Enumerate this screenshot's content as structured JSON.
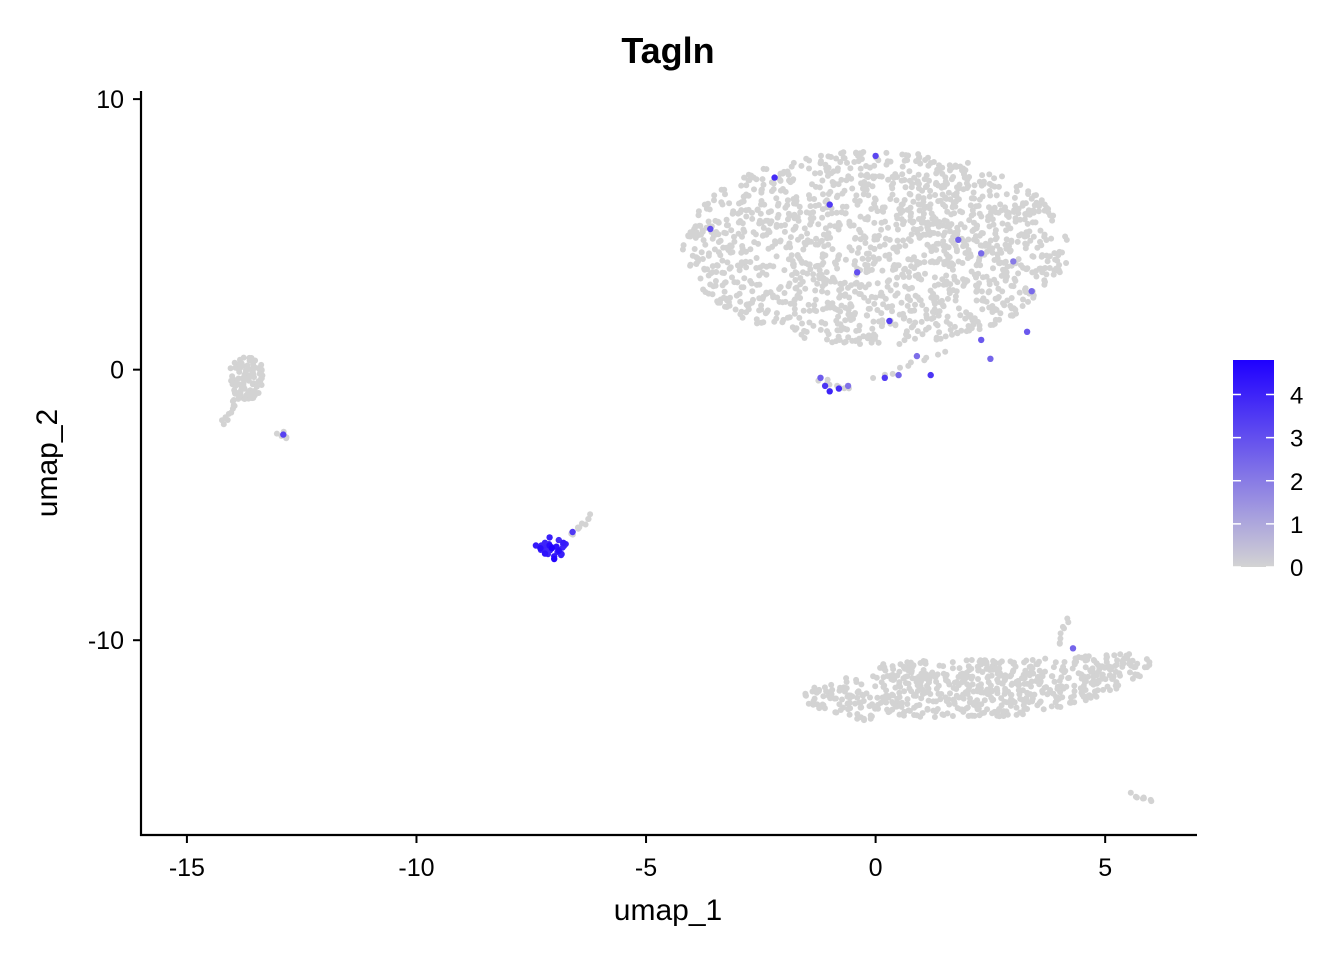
{
  "chart_data": {
    "type": "scatter",
    "title": "Tagln",
    "xlabel": "umap_1",
    "ylabel": "umap_2",
    "xlim": [
      -16,
      7
    ],
    "ylim": [
      -17.2,
      10.3
    ],
    "x_ticks": [
      -15,
      -10,
      -5,
      0,
      5
    ],
    "y_ticks": [
      10,
      0,
      -10
    ],
    "x_tick_labels": [
      "-15",
      "-10",
      "-5",
      "0",
      "5"
    ],
    "y_tick_labels": [
      "10",
      "0",
      "-10"
    ],
    "grid": false,
    "legend_position": "right",
    "color_scale": {
      "min": 0,
      "max": 4.8,
      "low_color": "#d3d3d3",
      "high_color": "#1f00ff",
      "breaks": [
        0,
        1,
        2,
        3,
        4
      ],
      "break_labels": [
        "0",
        "1",
        "2",
        "3",
        "4"
      ]
    },
    "clusters": [
      {
        "region": "large-upper-right",
        "center": [
          0,
          4.5
        ],
        "extent": [
          4.2,
          3.6
        ],
        "expression": 0
      },
      {
        "region": "lower-right",
        "center": [
          2.2,
          -11.8
        ],
        "extent": [
          3.8,
          1.1
        ],
        "expression": 0
      },
      {
        "region": "left",
        "center": [
          -13.7,
          -0.3
        ],
        "extent": [
          0.4,
          0.8
        ],
        "expression": 0
      },
      {
        "region": "center-small",
        "center": [
          -7.0,
          -6.6
        ],
        "extent": [
          0.35,
          0.25
        ],
        "expression": 4
      }
    ],
    "points": [
      {
        "x": -7.3,
        "y": -6.6,
        "value": 4.5
      },
      {
        "x": -7.2,
        "y": -6.8,
        "value": 4.4
      },
      {
        "x": -7.1,
        "y": -6.5,
        "value": 4.6
      },
      {
        "x": -7.0,
        "y": -6.9,
        "value": 4.3
      },
      {
        "x": -6.9,
        "y": -6.7,
        "value": 4.5
      },
      {
        "x": -7.0,
        "y": -7.0,
        "value": 4.7
      },
      {
        "x": -6.8,
        "y": -6.4,
        "value": 4.2
      },
      {
        "x": -7.2,
        "y": -6.4,
        "value": 4.0
      },
      {
        "x": -6.9,
        "y": -6.3,
        "value": 3.8
      },
      {
        "x": -7.1,
        "y": -6.2,
        "value": 4.1
      },
      {
        "x": -6.6,
        "y": -6.0,
        "value": 3.5
      },
      {
        "x": -7.4,
        "y": -6.5,
        "value": 4.2
      },
      {
        "x": -7.05,
        "y": -6.6,
        "value": 4.8
      },
      {
        "x": -6.95,
        "y": -6.55,
        "value": 4.4
      },
      {
        "x": -6.85,
        "y": -6.85,
        "value": 4.1
      },
      {
        "x": -7.15,
        "y": -6.7,
        "value": 3.9
      },
      {
        "x": -2.2,
        "y": 7.1,
        "value": 3.8
      },
      {
        "x": -1.0,
        "y": 6.1,
        "value": 3.5
      },
      {
        "x": 0.0,
        "y": 7.9,
        "value": 3.2
      },
      {
        "x": -3.6,
        "y": 5.2,
        "value": 3.0
      },
      {
        "x": -0.4,
        "y": 3.6,
        "value": 3.0
      },
      {
        "x": 0.3,
        "y": 1.8,
        "value": 3.4
      },
      {
        "x": 1.2,
        "y": -0.2,
        "value": 3.6
      },
      {
        "x": 0.2,
        "y": -0.3,
        "value": 3.5
      },
      {
        "x": -1.0,
        "y": -0.8,
        "value": 4.0
      },
      {
        "x": -0.8,
        "y": -0.7,
        "value": 3.8
      },
      {
        "x": -1.1,
        "y": -0.6,
        "value": 3.6
      },
      {
        "x": 2.3,
        "y": 1.1,
        "value": 2.8
      },
      {
        "x": 2.5,
        "y": 0.4,
        "value": 2.5
      },
      {
        "x": 3.4,
        "y": 2.9,
        "value": 2.4
      },
      {
        "x": 1.8,
        "y": 4.8,
        "value": 2.6
      },
      {
        "x": 2.3,
        "y": 4.3,
        "value": 2.4
      },
      {
        "x": 3.3,
        "y": 1.4,
        "value": 2.8
      },
      {
        "x": 0.9,
        "y": 0.5,
        "value": 2.3
      },
      {
        "x": 0.5,
        "y": -0.2,
        "value": 2.5
      },
      {
        "x": -1.2,
        "y": -0.3,
        "value": 2.7
      },
      {
        "x": 4.3,
        "y": -10.3,
        "value": 2.5
      },
      {
        "x": -12.9,
        "y": -2.4,
        "value": 3.3
      },
      {
        "x": 3.0,
        "y": 4.0,
        "value": 2.0
      },
      {
        "x": -0.6,
        "y": -0.6,
        "value": 2.2
      }
    ]
  }
}
